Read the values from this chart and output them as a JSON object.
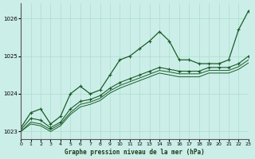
{
  "title": "Graphe pression niveau de la mer (hPa)",
  "background_color": "#cceee8",
  "grid_color": "#aaddcc",
  "line_color": "#1a5c2a",
  "xlim": [
    0,
    23
  ],
  "ylim": [
    1022.8,
    1026.4
  ],
  "yticks": [
    1023,
    1024,
    1025,
    1026
  ],
  "xticks": [
    0,
    1,
    2,
    3,
    4,
    5,
    6,
    7,
    8,
    9,
    10,
    11,
    12,
    13,
    14,
    15,
    16,
    17,
    18,
    19,
    20,
    21,
    22,
    23
  ],
  "line1_x": [
    0,
    1,
    2,
    3,
    4,
    5,
    6,
    7,
    8,
    9,
    10,
    11,
    12,
    13,
    14,
    15,
    16,
    17,
    18,
    19,
    20,
    21,
    22,
    23
  ],
  "line1_y": [
    1023.1,
    1023.5,
    1023.6,
    1023.2,
    1023.4,
    1024.0,
    1024.2,
    1024.0,
    1024.1,
    1024.5,
    1024.9,
    1025.0,
    1025.2,
    1025.4,
    1025.65,
    1025.4,
    1024.9,
    1024.9,
    1024.8,
    1024.8,
    1024.8,
    1024.9,
    1025.7,
    1026.2
  ],
  "line2_x": [
    0,
    1,
    2,
    3,
    4,
    5,
    6,
    7,
    8,
    9,
    10,
    11,
    12,
    13,
    14,
    15,
    16,
    17,
    18,
    19,
    20,
    21,
    22,
    23
  ],
  "line2_y": [
    1023.05,
    1023.35,
    1023.3,
    1023.1,
    1023.25,
    1023.6,
    1023.8,
    1023.85,
    1023.95,
    1024.15,
    1024.3,
    1024.4,
    1024.5,
    1024.6,
    1024.7,
    1024.65,
    1024.6,
    1024.6,
    1024.6,
    1024.7,
    1024.7,
    1024.7,
    1024.8,
    1025.0
  ],
  "line3_x": [
    0,
    1,
    2,
    3,
    4,
    5,
    6,
    7,
    8,
    9,
    10,
    11,
    12,
    13,
    14,
    15,
    16,
    17,
    18,
    19,
    20,
    21,
    22,
    23
  ],
  "line3_y": [
    1023.0,
    1023.25,
    1023.2,
    1023.05,
    1023.2,
    1023.5,
    1023.72,
    1023.78,
    1023.88,
    1024.08,
    1024.22,
    1024.32,
    1024.42,
    1024.52,
    1024.62,
    1024.58,
    1024.53,
    1024.53,
    1024.53,
    1024.62,
    1024.62,
    1024.62,
    1024.72,
    1024.9
  ],
  "line4_x": [
    0,
    1,
    2,
    3,
    4,
    5,
    6,
    7,
    8,
    9,
    10,
    11,
    12,
    13,
    14,
    15,
    16,
    17,
    18,
    19,
    20,
    21,
    22,
    23
  ],
  "line4_y": [
    1023.0,
    1023.2,
    1023.15,
    1023.0,
    1023.15,
    1023.45,
    1023.65,
    1023.72,
    1023.82,
    1024.02,
    1024.15,
    1024.25,
    1024.35,
    1024.45,
    1024.55,
    1024.5,
    1024.45,
    1024.45,
    1024.45,
    1024.55,
    1024.55,
    1024.55,
    1024.65,
    1024.82
  ]
}
